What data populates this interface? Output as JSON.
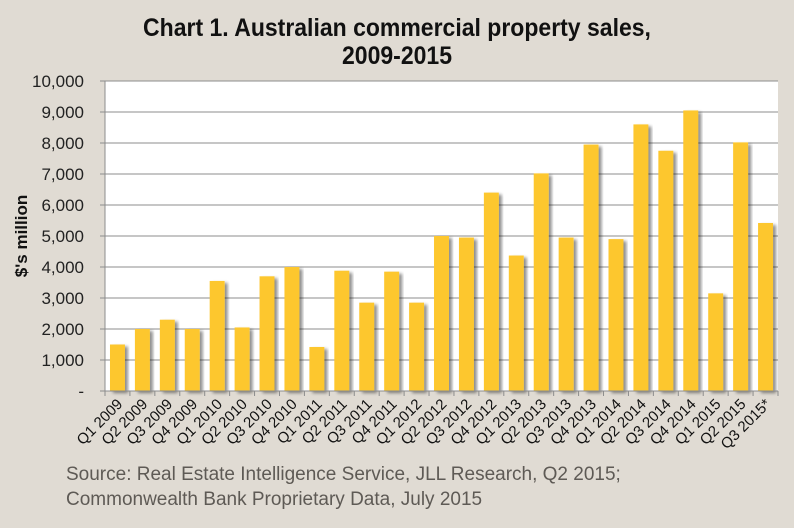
{
  "chart_data": {
    "type": "bar",
    "title": "Chart 1. Australian commercial property sales,",
    "title_line2": "2009-2015",
    "xlabel": "",
    "ylabel": "$'s million",
    "ylim": [
      0,
      10000
    ],
    "yticks": [
      0,
      1000,
      2000,
      3000,
      4000,
      5000,
      6000,
      7000,
      8000,
      9000,
      10000
    ],
    "ytick_labels": [
      "-",
      "1,000",
      "2,000",
      "3,000",
      "4,000",
      "5,000",
      "6,000",
      "7,000",
      "8,000",
      "9,000",
      "10,000"
    ],
    "grid": true,
    "categories": [
      "Q1 2009",
      "Q2 2009",
      "Q3 2009",
      "Q4 2009",
      "Q1 2010",
      "Q2 2010",
      "Q3 2010",
      "Q4 2010",
      "Q1 2011",
      "Q2 2011",
      "Q3 2011",
      "Q4 2011",
      "Q1 2012",
      "Q2 2012",
      "Q3 2012",
      "Q4 2012",
      "Q1 2013",
      "Q2 2013",
      "Q3 2013",
      "Q4 2013",
      "Q1 2014",
      "Q2 2014",
      "Q3 2014",
      "Q4 2014",
      "Q1 2015",
      "Q2 2015",
      "Q3 2015*"
    ],
    "values": [
      1500,
      2000,
      2300,
      2000,
      3550,
      2050,
      3700,
      4000,
      1420,
      3880,
      2850,
      3850,
      2850,
      5000,
      4950,
      6400,
      4370,
      7020,
      4950,
      7950,
      4900,
      8600,
      7750,
      9050,
      3150,
      8020,
      5420
    ],
    "bar_color": "#fdc72f",
    "source": "Source: Real Estate Intelligence Service, JLL Research, Q2 2015;",
    "source_line2": "Commonwealth Bank Proprietary Data, July 2015"
  }
}
